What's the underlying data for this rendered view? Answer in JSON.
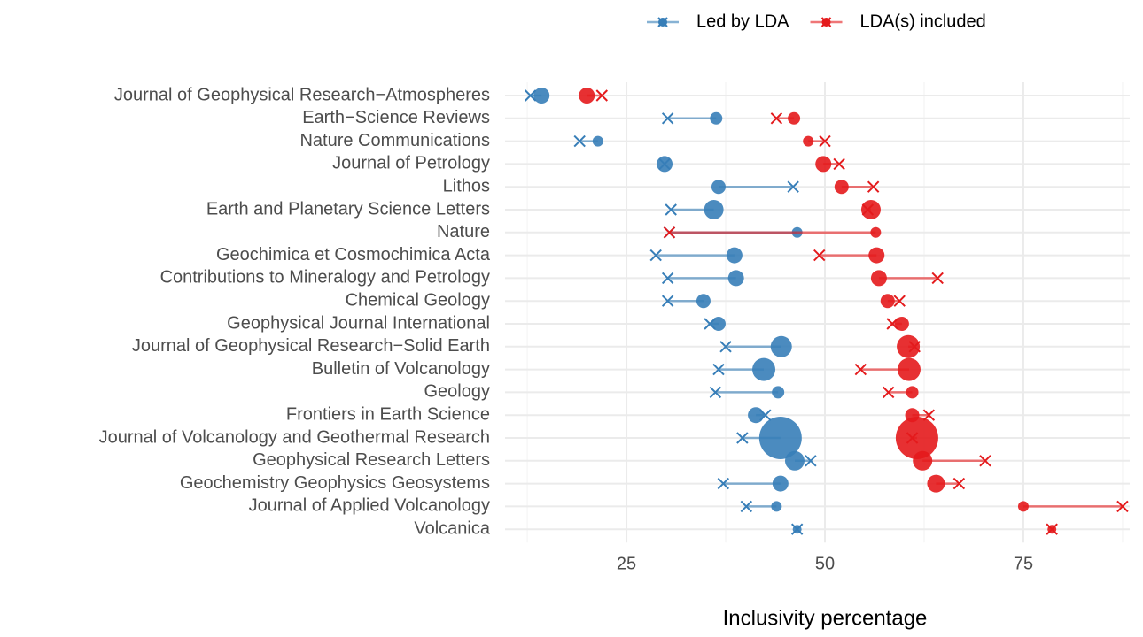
{
  "chart_data": {
    "type": "dumbbell",
    "x_label": "Inclusivity percentage",
    "categories": [
      "Journal of Geophysical Research−Atmospheres",
      "Earth−Science Reviews",
      "Nature Communications",
      "Journal of Petrology",
      "Lithos",
      "Earth and Planetary Science Letters",
      "Nature",
      "Geochimica et Cosmochimica Acta",
      "Contributions to Mineralogy and Petrology",
      "Chemical Geology",
      "Geophysical Journal International",
      "Journal of Geophysical Research−Solid Earth",
      "Bulletin of Volcanology",
      "Geology",
      "Frontiers in Earth Science",
      "Journal of Volcanology and Geothermal Research",
      "Geophysical Research Letters",
      "Geochemistry Geophysics Geosystems",
      "Journal of Applied Volcanology",
      "Volcanica"
    ],
    "series": [
      {
        "name": "Led by LDA",
        "color": "#377eb8",
        "values": [
          14.3,
          36.3,
          21.4,
          29.8,
          36.6,
          36.0,
          46.5,
          38.6,
          38.8,
          34.7,
          36.6,
          44.5,
          42.3,
          44.1,
          41.3,
          44.4,
          46.2,
          44.4,
          43.9,
          46.5
        ],
        "cross_values": [
          12.9,
          30.2,
          19.1,
          29.8,
          46.0,
          30.6,
          30.4,
          28.7,
          30.2,
          30.2,
          35.5,
          37.5,
          36.6,
          36.2,
          42.5,
          39.6,
          48.2,
          37.2,
          40.1,
          46.5
        ],
        "sizes": [
          9,
          7,
          6,
          9,
          8,
          11,
          6,
          9,
          9,
          8,
          8,
          12,
          13,
          7,
          9,
          24,
          11,
          9,
          6,
          5
        ]
      },
      {
        "name": "LDA(s) included",
        "color": "#e41a1c",
        "values": [
          20.0,
          46.1,
          47.9,
          49.8,
          52.1,
          55.8,
          56.4,
          56.5,
          56.8,
          57.9,
          59.7,
          60.5,
          60.6,
          61.0,
          61.0,
          61.6,
          62.3,
          64.0,
          75.0,
          78.6
        ],
        "cross_values": [
          21.9,
          43.9,
          50.0,
          51.8,
          56.1,
          55.4,
          30.4,
          49.3,
          64.2,
          59.4,
          58.5,
          61.3,
          54.5,
          58.0,
          63.1,
          61.0,
          70.2,
          66.9,
          87.5,
          78.6
        ],
        "sizes": [
          9,
          7,
          6,
          9,
          8,
          11,
          6,
          9,
          9,
          8,
          8,
          13,
          13,
          7,
          8,
          24,
          11,
          10,
          6,
          5
        ]
      }
    ],
    "xlim": [
      9.7,
      88.4
    ],
    "xticks": [
      25,
      50,
      75
    ],
    "minor_xticks": [
      12.5,
      37.5,
      62.5,
      87.5
    ],
    "grid": true,
    "legend": "top"
  }
}
